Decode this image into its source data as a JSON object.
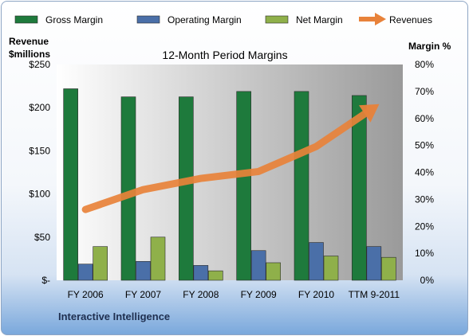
{
  "chart_data": {
    "type": "bar",
    "title": "12-Month Period Margins",
    "categories": [
      "FY 2006",
      "FY 2007",
      "FY 2008",
      "FY 2009",
      "FY 2010",
      "TTM 9-2011"
    ],
    "series": [
      {
        "name": "Gross Margin",
        "axis": "right",
        "color": "#1e7a3c",
        "values": [
          71,
          68,
          68,
          70,
          70,
          68.5
        ]
      },
      {
        "name": "Operating Margin",
        "axis": "right",
        "color": "#4a6fa8",
        "values": [
          6,
          7,
          5.5,
          11,
          14,
          12.5
        ]
      },
      {
        "name": "Net Margin",
        "axis": "right",
        "color": "#8fb04a",
        "values": [
          12.5,
          16,
          3.5,
          6.5,
          9,
          8.5
        ]
      }
    ],
    "line_series": {
      "name": "Revenues",
      "axis": "left",
      "color": "#e8823a",
      "values": [
        82,
        105,
        118,
        126,
        155,
        200
      ]
    },
    "left_axis": {
      "label_line1": "Revenue",
      "label_line2": "$millions",
      "ticks": [
        "$-",
        "$50",
        "$100",
        "$150",
        "$200",
        "$250"
      ],
      "ylim": [
        0,
        250
      ]
    },
    "right_axis": {
      "label": "Margin %",
      "ticks": [
        "0%",
        "10%",
        "20%",
        "30%",
        "40%",
        "50%",
        "60%",
        "70%",
        "80%"
      ],
      "ylim": [
        0,
        80
      ]
    },
    "legend_position": "top",
    "grid": false,
    "footer": "Interactive Intelligence"
  }
}
